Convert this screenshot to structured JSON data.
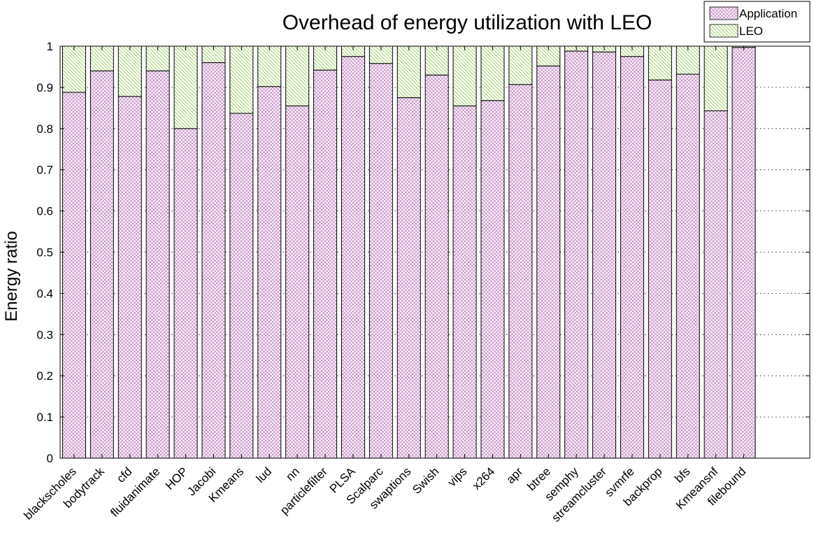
{
  "chart_data": {
    "type": "bar",
    "stacked": true,
    "title": "Overhead of energy utilization with LEO",
    "xlabel": "",
    "ylabel": "Energy ratio",
    "ylim": [
      0,
      1
    ],
    "yticks": [
      0,
      0.1,
      0.2,
      0.3,
      0.4,
      0.5,
      0.6,
      0.7,
      0.8,
      0.9,
      1
    ],
    "ytick_labels": [
      "0",
      "0.1",
      "0.2",
      "0.3",
      "0.4",
      "0.5",
      "0.6",
      "0.7",
      "0.8",
      "0.9",
      "1"
    ],
    "grid": "dotted horizontal",
    "legend_position": "top-right",
    "categories": [
      "blackscholes",
      "bodytrack",
      "cfd",
      "fluidanimate",
      "HOP",
      "Jacobi",
      "Kmeans",
      "lud",
      "nn",
      "particlefilter",
      "PLSA",
      "Scalparc",
      "swaptions",
      "Swish",
      "vips",
      "x264",
      "apr",
      "btree",
      "semphy",
      "streamcluster",
      "svmrfe",
      "backprop",
      "bfs",
      "Kmeansnf",
      "filebound"
    ],
    "series": [
      {
        "name": "Application",
        "color": "#c080c0",
        "pattern": "crosshatch",
        "values": [
          0.888,
          0.94,
          0.878,
          0.94,
          0.8,
          0.96,
          0.837,
          0.902,
          0.855,
          0.942,
          0.975,
          0.958,
          0.875,
          0.93,
          0.855,
          0.868,
          0.907,
          0.952,
          0.988,
          0.986,
          0.975,
          0.918,
          0.932,
          0.843,
          0.997
        ]
      },
      {
        "name": "LEO",
        "color": "#90c850",
        "pattern": "diagonal",
        "values": [
          0.112,
          0.06,
          0.122,
          0.06,
          0.2,
          0.04,
          0.163,
          0.098,
          0.145,
          0.058,
          0.025,
          0.042,
          0.125,
          0.07,
          0.145,
          0.132,
          0.093,
          0.048,
          0.012,
          0.014,
          0.025,
          0.082,
          0.068,
          0.157,
          0.003
        ]
      }
    ]
  }
}
